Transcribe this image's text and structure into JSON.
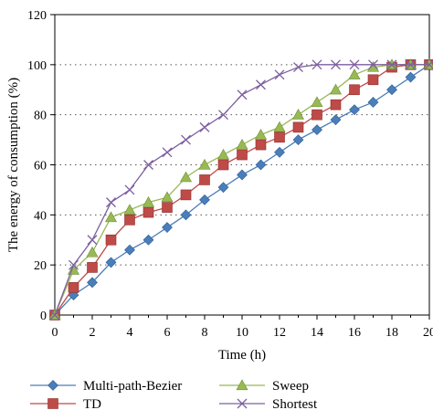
{
  "chart_data": {
    "type": "line",
    "xlabel": "Time (h)",
    "ylabel": "The energy of consumption (%)",
    "xlim": [
      0,
      20
    ],
    "ylim": [
      0,
      120
    ],
    "xticks": [
      0,
      2,
      4,
      6,
      8,
      10,
      12,
      14,
      16,
      18,
      20
    ],
    "yticks": [
      0,
      20,
      40,
      60,
      80,
      100,
      120
    ],
    "grid": "horizontal-dotted",
    "legend": "bottom",
    "series": [
      {
        "name": "Multi-path-Bezier",
        "marker": "diamond",
        "color": "#4a7ebb",
        "x": [
          0,
          1,
          2,
          3,
          4,
          5,
          6,
          7,
          8,
          9,
          10,
          11,
          12,
          13,
          14,
          15,
          16,
          17,
          18,
          19,
          20
        ],
        "values": [
          0,
          8,
          13,
          21,
          26,
          30,
          35,
          40,
          46,
          51,
          56,
          60,
          65,
          70,
          74,
          78,
          82,
          85,
          90,
          95,
          100
        ]
      },
      {
        "name": "TD",
        "marker": "square",
        "color": "#be4b48",
        "x": [
          0,
          1,
          2,
          3,
          4,
          5,
          6,
          7,
          8,
          9,
          10,
          11,
          12,
          13,
          14,
          15,
          16,
          17,
          18,
          19,
          20
        ],
        "values": [
          0,
          11,
          19,
          30,
          38,
          41,
          43,
          48,
          54,
          60,
          64,
          68,
          71,
          75,
          80,
          84,
          90,
          94,
          99,
          100,
          100
        ]
      },
      {
        "name": "Sweep",
        "marker": "triangle",
        "color": "#98b954",
        "x": [
          0,
          1,
          2,
          3,
          4,
          5,
          6,
          7,
          8,
          9,
          10,
          11,
          12,
          13,
          14,
          15,
          16,
          17,
          18,
          19,
          20
        ],
        "values": [
          0,
          18,
          25,
          39,
          42,
          45,
          47,
          55,
          60,
          64,
          68,
          72,
          75,
          80,
          85,
          90,
          96,
          99,
          100,
          100,
          100
        ]
      },
      {
        "name": "Shortest",
        "marker": "x",
        "color": "#7d5fa0",
        "x": [
          0,
          1,
          2,
          3,
          4,
          5,
          6,
          7,
          8,
          9,
          10,
          11,
          12,
          13,
          14,
          15,
          16,
          17,
          18,
          19,
          20
        ],
        "values": [
          0,
          20,
          30,
          45,
          50,
          60,
          65,
          70,
          75,
          80,
          88,
          92,
          96,
          99,
          100,
          100,
          100,
          100,
          100,
          100,
          100
        ]
      }
    ]
  }
}
